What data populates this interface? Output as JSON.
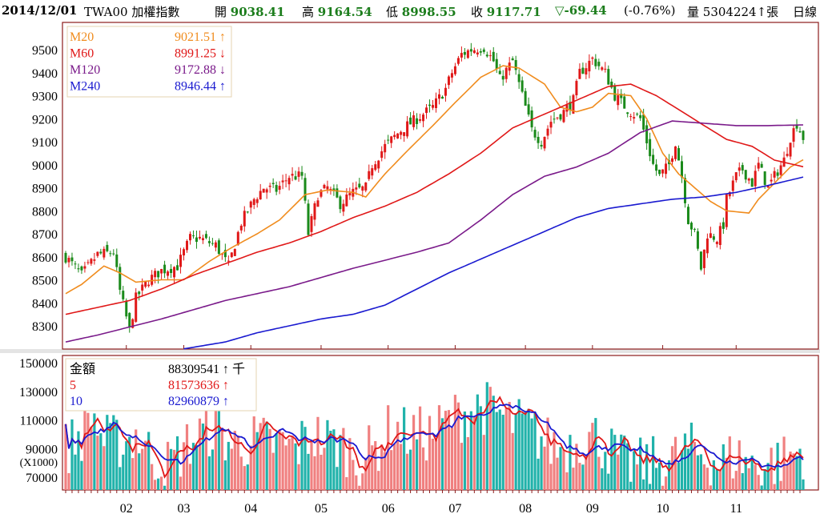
{
  "header": {
    "date": "2014/12/01",
    "symbol": "TWA00 加權指數",
    "open_label": "開",
    "open": "9038.41",
    "high_label": "高",
    "high": "9164.54",
    "low_label": "低",
    "low": "8998.55",
    "close_label": "收",
    "close": "9117.71",
    "change": "▽-69.44",
    "change_pct": "(-0.76%)",
    "volume_label": "量",
    "volume": "5304224↑張",
    "period": "日線"
  },
  "chart_data": [
    {
      "type": "candlestick",
      "title": "TWA00 加權指數 日線",
      "ylim": [
        8200,
        9620
      ],
      "yticks": [
        "9500",
        "9400",
        "9300",
        "9200",
        "9100",
        "9000",
        "8900",
        "8800",
        "8700",
        "8600",
        "8500",
        "8400",
        "8300"
      ],
      "x_unit": "trading day index",
      "month_ticks": [
        {
          "label": "02",
          "day": 19
        },
        {
          "label": "03",
          "day": 37
        },
        {
          "label": "04",
          "day": 58
        },
        {
          "label": "05",
          "day": 80
        },
        {
          "label": "06",
          "day": 101
        },
        {
          "label": "07",
          "day": 122
        },
        {
          "label": "08",
          "day": 144
        },
        {
          "label": "09",
          "day": 165
        },
        {
          "label": "10",
          "day": 187
        },
        {
          "label": "11",
          "day": 210
        }
      ],
      "total_days": 231,
      "close_keypoints": [
        [
          0,
          8600
        ],
        [
          5,
          8520
        ],
        [
          10,
          8610
        ],
        [
          15,
          8620
        ],
        [
          17,
          8450
        ],
        [
          20,
          8280
        ],
        [
          22,
          8420
        ],
        [
          26,
          8500
        ],
        [
          30,
          8540
        ],
        [
          35,
          8560
        ],
        [
          39,
          8680
        ],
        [
          42,
          8680
        ],
        [
          47,
          8650
        ],
        [
          51,
          8560
        ],
        [
          55,
          8750
        ],
        [
          59,
          8850
        ],
        [
          62,
          8900
        ],
        [
          66,
          8890
        ],
        [
          70,
          8950
        ],
        [
          74,
          8950
        ],
        [
          76,
          8700
        ],
        [
          79,
          8870
        ],
        [
          82,
          8900
        ],
        [
          86,
          8830
        ],
        [
          90,
          8880
        ],
        [
          94,
          8900
        ],
        [
          96,
          9000
        ],
        [
          100,
          9080
        ],
        [
          105,
          9150
        ],
        [
          110,
          9200
        ],
        [
          115,
          9250
        ],
        [
          119,
          9330
        ],
        [
          121,
          9400
        ],
        [
          124,
          9480
        ],
        [
          127,
          9500
        ],
        [
          131,
          9510
        ],
        [
          134,
          9450
        ],
        [
          136,
          9370
        ],
        [
          140,
          9450
        ],
        [
          142,
          9350
        ],
        [
          146,
          9150
        ],
        [
          149,
          9100
        ],
        [
          152,
          9190
        ],
        [
          156,
          9230
        ],
        [
          159,
          9280
        ],
        [
          161,
          9400
        ],
        [
          165,
          9460
        ],
        [
          169,
          9400
        ],
        [
          172,
          9300
        ],
        [
          176,
          9240
        ],
        [
          180,
          9200
        ],
        [
          184,
          9000
        ],
        [
          186,
          8950
        ],
        [
          189,
          9000
        ],
        [
          191,
          9100
        ],
        [
          193,
          8950
        ],
        [
          195,
          8760
        ],
        [
          197,
          8700
        ],
        [
          199,
          8550
        ],
        [
          201,
          8700
        ],
        [
          204,
          8680
        ],
        [
          206,
          8740
        ],
        [
          207,
          8850
        ],
        [
          210,
          8950
        ],
        [
          212,
          8980
        ],
        [
          215,
          8920
        ],
        [
          217,
          9000
        ],
        [
          220,
          8900
        ],
        [
          222,
          8950
        ],
        [
          225,
          9020
        ],
        [
          227,
          9120
        ],
        [
          229,
          9180
        ],
        [
          231,
          9117.71
        ]
      ],
      "legend": [
        {
          "name": "M20",
          "value": "9021.51 ↑",
          "color": "#f08c1e"
        },
        {
          "name": "M60",
          "value": "8991.25 ↓",
          "color": "#e01818"
        },
        {
          "name": "M120",
          "value": "9172.88 ↓",
          "color": "#7a1a8a"
        },
        {
          "name": "M240",
          "value": "8946.44 ↑",
          "color": "#1a1ad0"
        }
      ],
      "series": [
        {
          "name": "M20",
          "color": "#f08c1e",
          "points": [
            [
              0,
              8440
            ],
            [
              5,
              8480
            ],
            [
              12,
              8560
            ],
            [
              17,
              8530
            ],
            [
              22,
              8490
            ],
            [
              30,
              8500
            ],
            [
              37,
              8500
            ],
            [
              45,
              8580
            ],
            [
              52,
              8640
            ],
            [
              60,
              8700
            ],
            [
              67,
              8760
            ],
            [
              75,
              8870
            ],
            [
              82,
              8890
            ],
            [
              90,
              8880
            ],
            [
              94,
              8860
            ],
            [
              100,
              8960
            ],
            [
              107,
              9060
            ],
            [
              115,
              9170
            ],
            [
              122,
              9270
            ],
            [
              130,
              9380
            ],
            [
              137,
              9430
            ],
            [
              142,
              9420
            ],
            [
              150,
              9350
            ],
            [
              155,
              9250
            ],
            [
              160,
              9230
            ],
            [
              165,
              9250
            ],
            [
              170,
              9310
            ],
            [
              177,
              9300
            ],
            [
              182,
              9200
            ],
            [
              187,
              9050
            ],
            [
              192,
              8960
            ],
            [
              197,
              8900
            ],
            [
              202,
              8840
            ],
            [
              207,
              8800
            ],
            [
              214,
              8790
            ],
            [
              217,
              8850
            ],
            [
              222,
              8920
            ],
            [
              227,
              8990
            ],
            [
              231,
              9021.51
            ]
          ]
        },
        {
          "name": "M60",
          "color": "#e01818",
          "points": [
            [
              0,
              8350
            ],
            [
              10,
              8380
            ],
            [
              20,
              8410
            ],
            [
              30,
              8460
            ],
            [
              40,
              8520
            ],
            [
              50,
              8570
            ],
            [
              60,
              8620
            ],
            [
              70,
              8660
            ],
            [
              80,
              8710
            ],
            [
              90,
              8770
            ],
            [
              100,
              8820
            ],
            [
              110,
              8880
            ],
            [
              120,
              8960
            ],
            [
              130,
              9050
            ],
            [
              140,
              9160
            ],
            [
              150,
              9220
            ],
            [
              160,
              9280
            ],
            [
              170,
              9340
            ],
            [
              177,
              9350
            ],
            [
              185,
              9300
            ],
            [
              192,
              9240
            ],
            [
              200,
              9170
            ],
            [
              207,
              9110
            ],
            [
              215,
              9080
            ],
            [
              222,
              9020
            ],
            [
              231,
              8991.25
            ]
          ]
        },
        {
          "name": "M120",
          "color": "#7a1a8a",
          "points": [
            [
              0,
              8230
            ],
            [
              10,
              8260
            ],
            [
              30,
              8330
            ],
            [
              50,
              8410
            ],
            [
              70,
              8470
            ],
            [
              90,
              8550
            ],
            [
              110,
              8620
            ],
            [
              120,
              8660
            ],
            [
              130,
              8760
            ],
            [
              140,
              8870
            ],
            [
              150,
              8950
            ],
            [
              160,
              8990
            ],
            [
              170,
              9050
            ],
            [
              180,
              9140
            ],
            [
              190,
              9190
            ],
            [
              200,
              9180
            ],
            [
              210,
              9170
            ],
            [
              220,
              9170
            ],
            [
              231,
              9172.88
            ]
          ]
        },
        {
          "name": "M240",
          "color": "#1a1ad0",
          "points": [
            [
              37,
              8200
            ],
            [
              50,
              8230
            ],
            [
              60,
              8270
            ],
            [
              70,
              8300
            ],
            [
              80,
              8330
            ],
            [
              90,
              8350
            ],
            [
              100,
              8390
            ],
            [
              110,
              8460
            ],
            [
              120,
              8530
            ],
            [
              130,
              8590
            ],
            [
              140,
              8650
            ],
            [
              150,
              8710
            ],
            [
              160,
              8770
            ],
            [
              170,
              8810
            ],
            [
              180,
              8830
            ],
            [
              190,
              8850
            ],
            [
              200,
              8860
            ],
            [
              210,
              8880
            ],
            [
              220,
              8910
            ],
            [
              231,
              8946.44
            ]
          ]
        }
      ]
    },
    {
      "type": "bar",
      "title": "金額",
      "unit": "(X1000)",
      "ylim": [
        61000,
        155000
      ],
      "yticks": [
        "150000",
        "130000",
        "110000",
        "90000",
        "70000"
      ],
      "legend": [
        {
          "name": "金額",
          "value": "88309541 ↑ 千",
          "color": "#000000"
        },
        {
          "name": "5",
          "value": "81573636 ↑",
          "color": "#e01818"
        },
        {
          "name": "10",
          "value": "82960879 ↑",
          "color": "#1a1ad0"
        }
      ],
      "up_color": "#f08080",
      "down_color": "#20b2aa",
      "amount_keypoints": [
        [
          0,
          90000
        ],
        [
          5,
          100000
        ],
        [
          8,
          115000
        ],
        [
          12,
          95000
        ],
        [
          19,
          95000
        ],
        [
          22,
          100000
        ],
        [
          27,
          85000
        ],
        [
          32,
          78000
        ],
        [
          37,
          90000
        ],
        [
          42,
          100000
        ],
        [
          47,
          105000
        ],
        [
          52,
          92000
        ],
        [
          57,
          95000
        ],
        [
          62,
          95000
        ],
        [
          67,
          93000
        ],
        [
          72,
          90000
        ],
        [
          77,
          100000
        ],
        [
          82,
          95000
        ],
        [
          87,
          92000
        ],
        [
          92,
          82000
        ],
        [
          97,
          90000
        ],
        [
          102,
          105000
        ],
        [
          107,
          100000
        ],
        [
          115,
          100000
        ],
        [
          120,
          110000
        ],
        [
          125,
          115000
        ],
        [
          130,
          120000
        ],
        [
          135,
          115000
        ],
        [
          140,
          108000
        ],
        [
          145,
          105000
        ],
        [
          150,
          95000
        ],
        [
          155,
          90000
        ],
        [
          160,
          95000
        ],
        [
          165,
          100000
        ],
        [
          170,
          90000
        ],
        [
          175,
          80000
        ],
        [
          180,
          78000
        ],
        [
          185,
          80000
        ],
        [
          190,
          82000
        ],
        [
          195,
          90000
        ],
        [
          200,
          85000
        ],
        [
          205,
          80000
        ],
        [
          210,
          85000
        ],
        [
          215,
          78000
        ],
        [
          220,
          80000
        ],
        [
          225,
          82000
        ],
        [
          231,
          88310
        ]
      ]
    }
  ]
}
